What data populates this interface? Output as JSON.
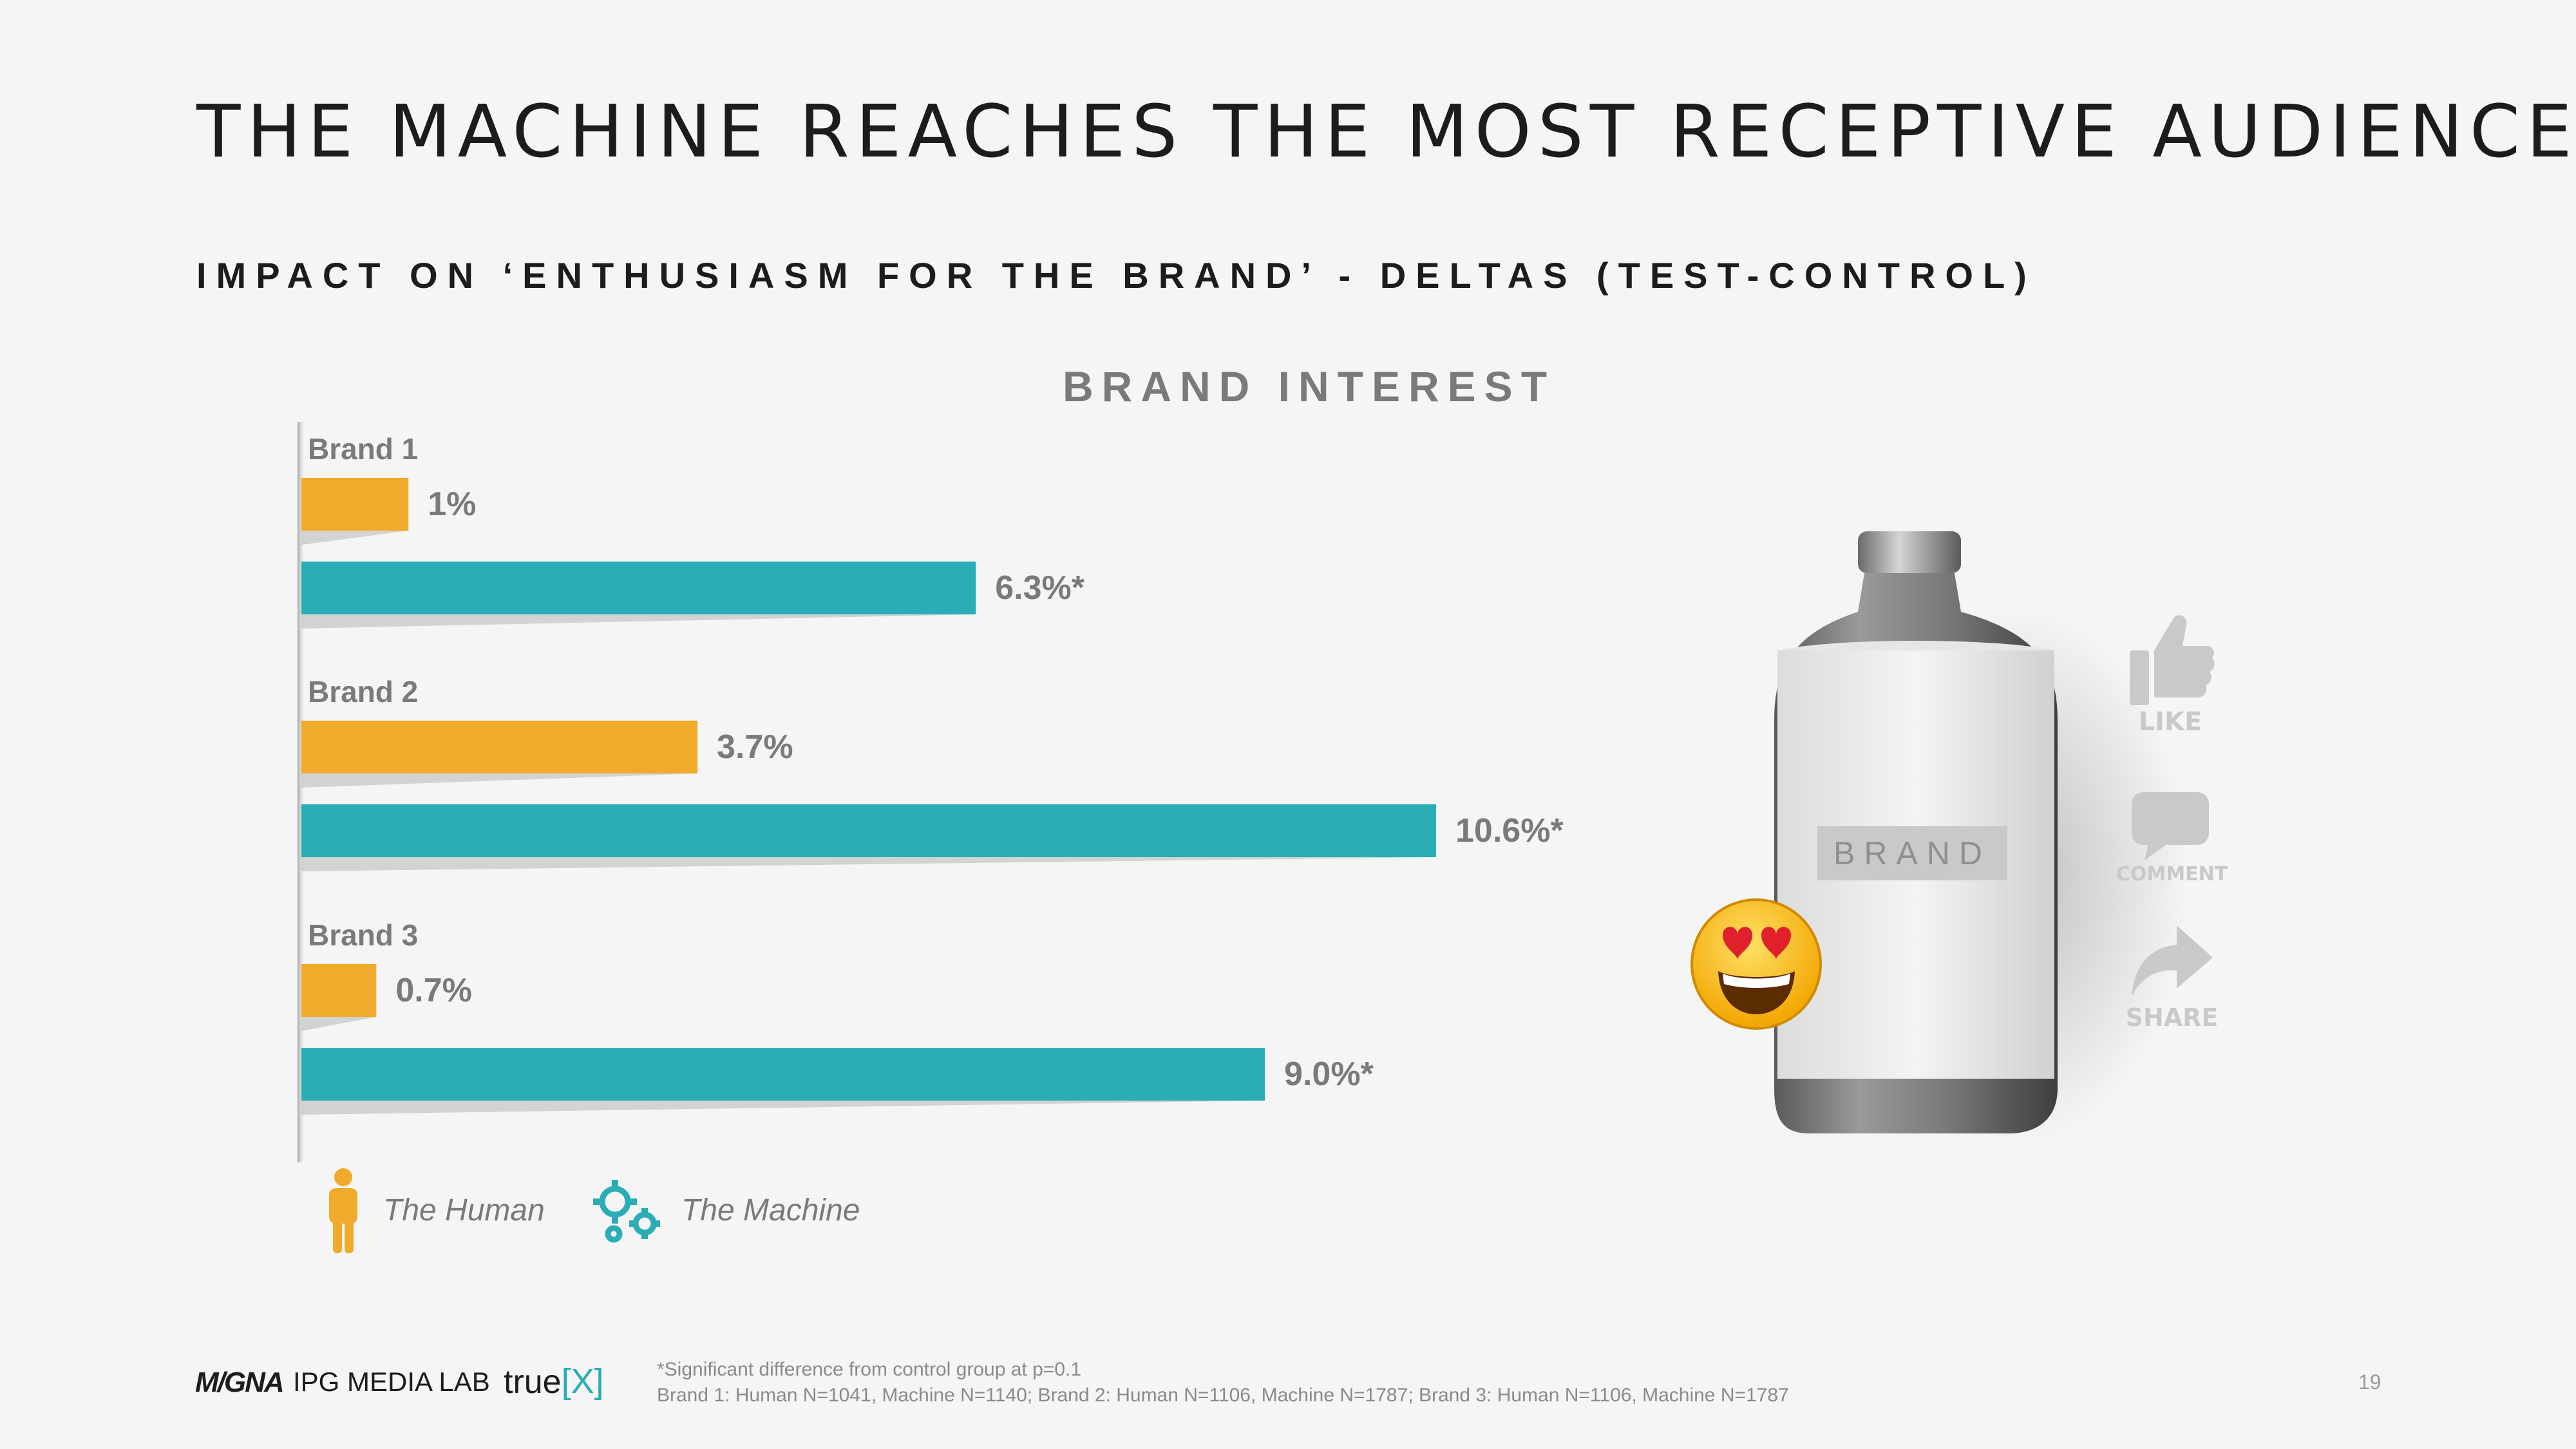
{
  "header": {
    "title": "THE MACHINE REACHES THE MOST RECEPTIVE AUDIENCE",
    "subtitle": "IMPACT ON ‘ENTHUSIASM FOR THE BRAND’ - DELTAS (TEST-CONTROL)"
  },
  "chart_data": {
    "type": "bar",
    "orientation": "horizontal",
    "title": "BRAND INTEREST",
    "categories": [
      "Brand 1",
      "Brand 2",
      "Brand 3"
    ],
    "series": [
      {
        "name": "The Human",
        "values": [
          1.0,
          3.7,
          0.7
        ],
        "labels": [
          "1%",
          "3.7%",
          "0.7%"
        ],
        "color": "#f0aa2c"
      },
      {
        "name": "The Machine",
        "values": [
          6.3,
          10.6,
          9.0
        ],
        "labels": [
          "6.3%*",
          "10.6%*",
          "9.0%*"
        ],
        "color": "#2aadb5"
      }
    ],
    "xlim": [
      0,
      12
    ],
    "grid": false,
    "legend_position": "bottom-left"
  },
  "legend": {
    "human_icon": "person-icon",
    "machine_icon": "gears-icon"
  },
  "illustration": {
    "bottle_label": "BRAND",
    "emoji": "heart-eyes-emoji",
    "social": [
      {
        "icon": "thumbs-up-icon",
        "label": "LIKE"
      },
      {
        "icon": "speech-bubble-icon",
        "label": "COMMENT"
      },
      {
        "icon": "share-arrow-icon",
        "label": "SHARE"
      }
    ]
  },
  "footer": {
    "logos": [
      "M/GNA",
      "IPG MEDIA LAB",
      "true",
      "X"
    ],
    "footnote_line1": "*Significant difference from control group at p=0.1",
    "footnote_line2": "Brand 1: Human N=1041, Machine N=1140; Brand 2: Human N=1106, Machine N=1787; Brand 3: Human N=1106, Machine N=1787",
    "page_number": "19"
  }
}
